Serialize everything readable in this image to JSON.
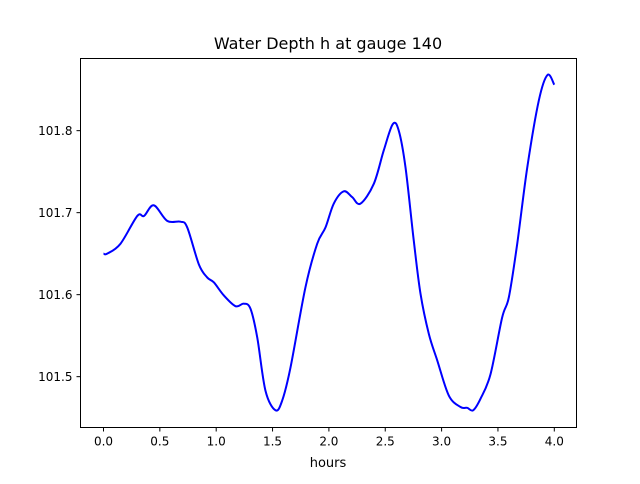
{
  "chart_data": {
    "type": "line",
    "title": "Water Depth h at gauge 140",
    "xlabel": "hours",
    "ylabel": "",
    "xlim": [
      -0.204,
      4.197
    ],
    "ylim": [
      101.438,
      101.888
    ],
    "xticks": [
      0.0,
      0.5,
      1.0,
      1.5,
      2.0,
      2.5,
      3.0,
      3.5,
      4.0
    ],
    "xtick_labels": [
      "0.0",
      "0.5",
      "1.0",
      "1.5",
      "2.0",
      "2.5",
      "3.0",
      "3.5",
      "4.0"
    ],
    "yticks": [
      101.5,
      101.6,
      101.7,
      101.8
    ],
    "ytick_labels": [
      "101.5",
      "101.6",
      "101.7",
      "101.8"
    ],
    "grid": false,
    "series": [
      {
        "name": "h",
        "color": "#0000ff",
        "x": [
          0.0,
          0.033,
          0.15,
          0.3,
          0.36,
          0.446,
          0.565,
          0.683,
          0.743,
          0.846,
          0.92,
          0.979,
          1.068,
          1.171,
          1.245,
          1.304,
          1.364,
          1.437,
          1.526,
          1.586,
          1.659,
          1.792,
          1.896,
          1.97,
          2.043,
          2.132,
          2.206,
          2.28,
          2.398,
          2.487,
          2.567,
          2.62,
          2.68,
          2.753,
          2.813,
          2.887,
          2.961,
          3.064,
          3.168,
          3.227,
          3.28,
          3.345,
          3.434,
          3.537,
          3.597,
          3.671,
          3.76,
          3.863,
          3.94,
          4.0
        ],
        "y": [
          101.65,
          101.65,
          101.662,
          101.696,
          101.696,
          101.709,
          101.69,
          101.689,
          101.682,
          101.637,
          101.621,
          101.615,
          101.599,
          101.586,
          101.589,
          101.583,
          101.548,
          101.483,
          101.459,
          101.471,
          101.511,
          101.609,
          101.662,
          101.682,
          101.711,
          101.726,
          101.719,
          101.711,
          101.735,
          101.776,
          101.808,
          101.8,
          101.755,
          101.666,
          101.601,
          101.552,
          101.52,
          101.477,
          101.463,
          101.462,
          101.459,
          101.473,
          101.503,
          101.572,
          101.597,
          101.662,
          101.755,
          101.837,
          101.868,
          101.856
        ]
      }
    ]
  }
}
